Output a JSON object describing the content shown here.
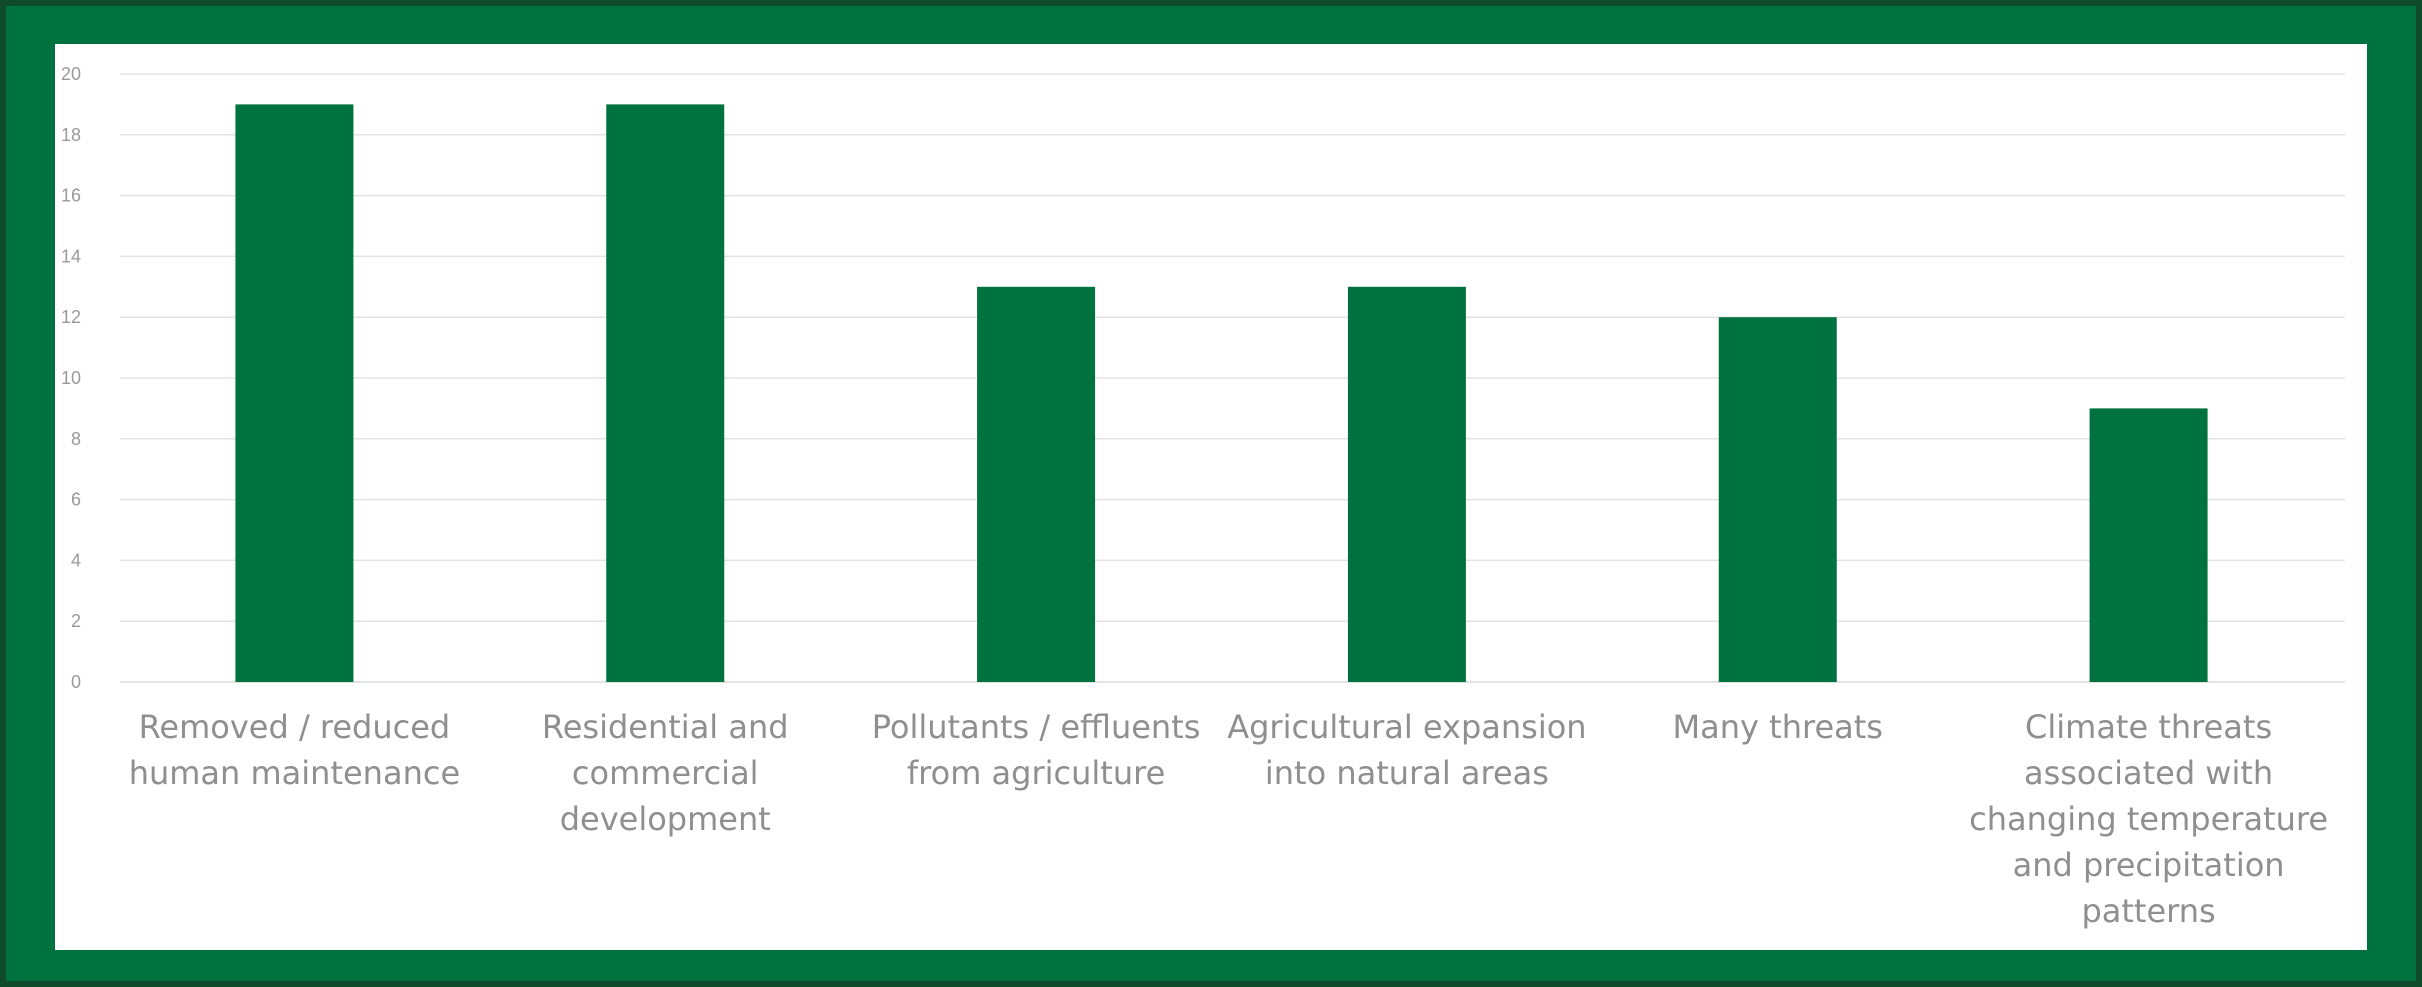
{
  "chart_data": {
    "type": "bar",
    "categories": [
      "Removed / reduced human maintenance",
      "Residential and commercial development",
      "Pollutants / effluents from agriculture",
      "Agricultural expansion into natural areas",
      "Many threats",
      "Climate threats associated with changing temperature and precipitation patterns"
    ],
    "values": [
      19,
      19,
      13,
      13,
      12,
      9
    ],
    "title": "",
    "xlabel": "",
    "ylabel": "",
    "ylim": [
      0,
      20
    ],
    "yticks": [
      0,
      2,
      4,
      6,
      8,
      10,
      12,
      14,
      16,
      18,
      20
    ],
    "grid": true,
    "legend": "none"
  },
  "colors": {
    "bar": "#007240",
    "frame": "#007240",
    "grid": "#e3e3e3",
    "tick_text": "#9a9a9a"
  }
}
